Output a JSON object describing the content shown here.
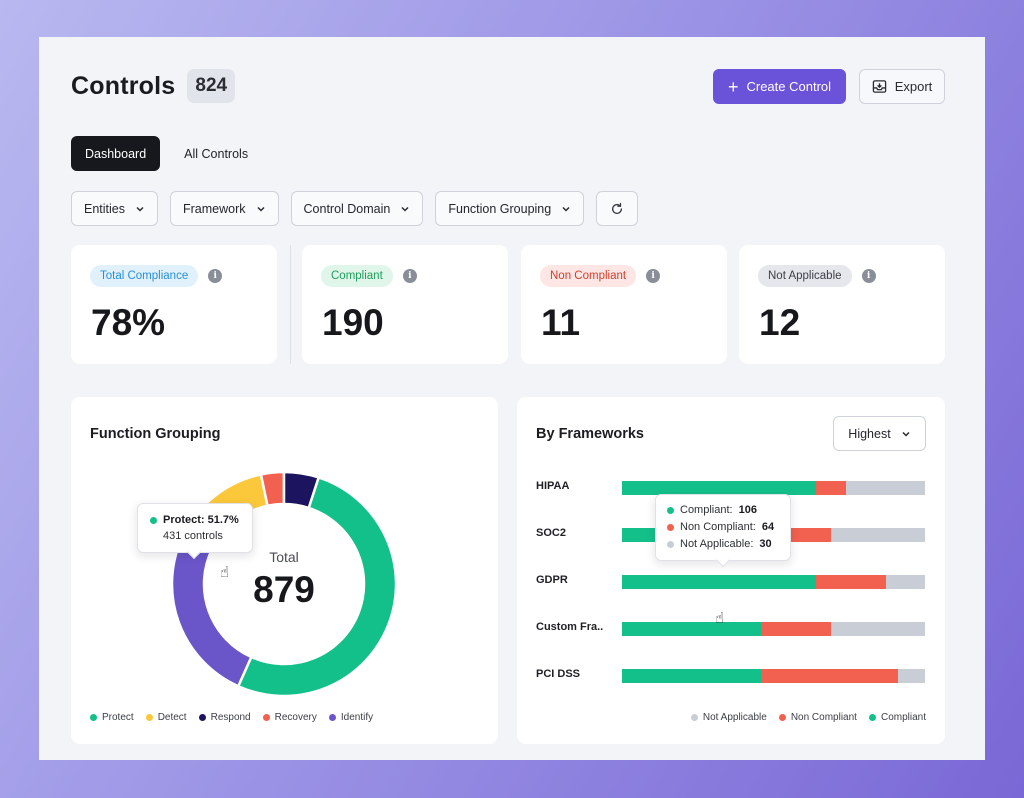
{
  "header": {
    "title": "Controls",
    "count": "824",
    "create_label": "Create Control",
    "export_label": "Export"
  },
  "tabs": [
    {
      "label": "Dashboard",
      "active": true
    },
    {
      "label": "All Controls",
      "active": false
    }
  ],
  "filters": [
    "Entities",
    "Framework",
    "Control Domain",
    "Function Grouping"
  ],
  "stats": [
    {
      "label": "Total Compliance",
      "value": "78%",
      "pill_bg": "#e0f1fc",
      "pill_fg": "#2a8fd6"
    },
    {
      "label": "Compliant",
      "value": "190",
      "pill_bg": "#e0f6ea",
      "pill_fg": "#1f9d5a"
    },
    {
      "label": "Non Compliant",
      "value": "11",
      "pill_bg": "#fde6e3",
      "pill_fg": "#d2402e"
    },
    {
      "label": "Not Applicable",
      "value": "12",
      "pill_bg": "#e5e7ec",
      "pill_fg": "#3c3f46"
    }
  ],
  "function_grouping": {
    "title": "Function Grouping",
    "center_label": "Total",
    "center_value": "879",
    "tooltip": {
      "label": "Protect: 51.7%",
      "sub": "431 controls"
    },
    "legend": [
      {
        "name": "Protect",
        "color": "#14c08a"
      },
      {
        "name": "Detect",
        "color": "#fcc83b"
      },
      {
        "name": "Respond",
        "color": "#1d1460"
      },
      {
        "name": "Recovery",
        "color": "#f2604f"
      },
      {
        "name": "Identify",
        "color": "#6a56c9"
      }
    ]
  },
  "frameworks": {
    "title": "By Frameworks",
    "sort_label": "Highest",
    "tooltip": {
      "compliant": {
        "label": "Compliant:",
        "value": "106"
      },
      "non_compliant": {
        "label": "Non Compliant:",
        "value": "64"
      },
      "not_applicable": {
        "label": "Not Applicable:",
        "value": "30"
      }
    },
    "legend": [
      {
        "name": "Not Applicable",
        "color": "#c9cdd6"
      },
      {
        "name": "Non Compliant",
        "color": "#f2604f"
      },
      {
        "name": "Compliant",
        "color": "#14c08a"
      }
    ]
  },
  "chart_data": [
    {
      "type": "pie",
      "title": "Function Grouping",
      "categories": [
        "Protect",
        "Identify",
        "Detect",
        "Recovery",
        "Respond"
      ],
      "values": [
        51.7,
        25.5,
        14.5,
        3.3,
        5.0
      ],
      "colors": [
        "#14c08a",
        "#6a56c9",
        "#fcc83b",
        "#f2604f",
        "#1d1460"
      ],
      "total": 879
    },
    {
      "type": "bar",
      "title": "By Frameworks",
      "categories": [
        "HIPAA",
        "SOC2",
        "GDPR",
        "Custom Fra..",
        "PCI DSS"
      ],
      "series": [
        {
          "name": "Compliant",
          "values": [
            64,
            46,
            64,
            46,
            46
          ],
          "color": "#14c08a"
        },
        {
          "name": "Non Compliant",
          "values": [
            10,
            23,
            23,
            23,
            45
          ],
          "color": "#f2604f"
        },
        {
          "name": "Not Applicable",
          "values": [
            26,
            31,
            13,
            31,
            9
          ],
          "color": "#c9cdd6"
        }
      ],
      "stacked": true,
      "legend_position": "bottom-right"
    }
  ]
}
